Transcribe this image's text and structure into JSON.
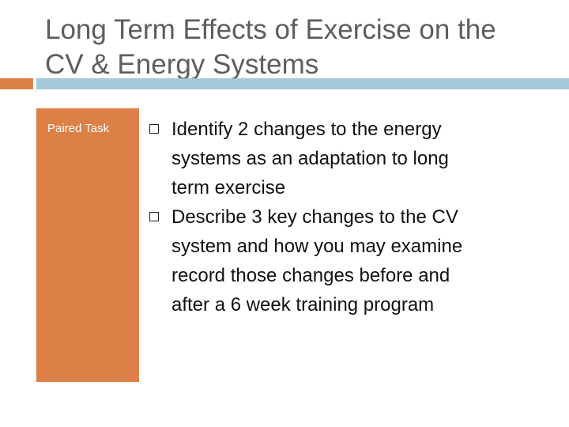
{
  "slide": {
    "title_line1": "Long Term Effects of Exercise on the",
    "title_line2": "CV & Energy Systems",
    "side_label": "Paired Task",
    "bullets": [
      {
        "line1": "Identify 2 changes to the energy",
        "line2": "systems as an adaptation to long",
        "line3": "term exercise"
      },
      {
        "line1": "Describe 3 key changes to the CV",
        "line2": "system and how you may examine",
        "line3": "record those changes before and",
        "line4": "after a 6 week training program"
      }
    ],
    "icons": {
      "bullet": "hollow-square-bullet-icon"
    },
    "colors": {
      "accent_orange": "#dd8047",
      "accent_blue": "#a5c8dc",
      "title_text": "#5d5d5d",
      "body_text": "#111111"
    }
  }
}
